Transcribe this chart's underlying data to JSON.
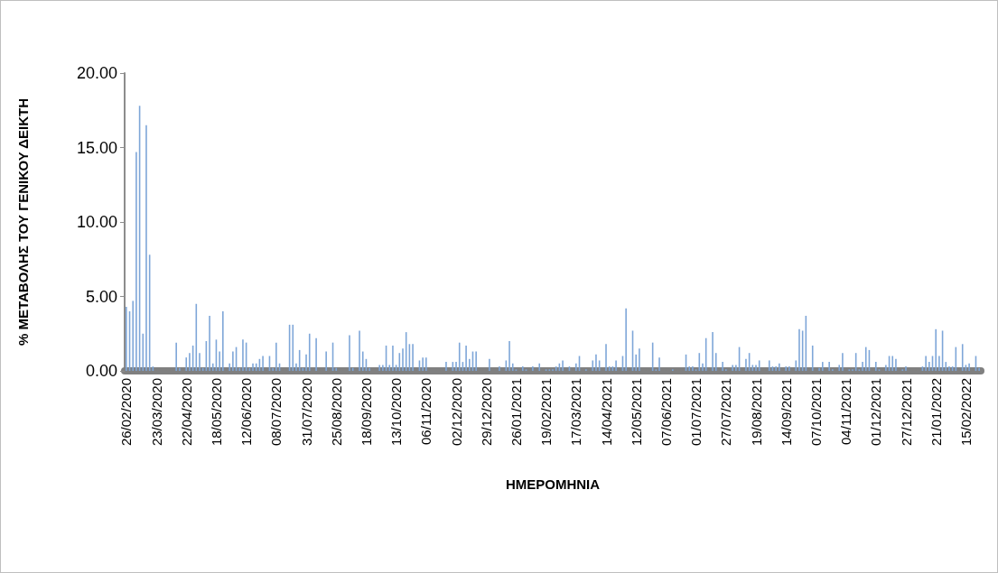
{
  "chart_data": {
    "type": "bar",
    "xlabel": "ΗΜΕΡΟΜΗΝΙΑ",
    "ylabel": "% ΜΕΤΑΒΟΛΗΣ ΤΟΥ ΓΕΝΙΚΟΥ ΔΕΙΚΤΗ",
    "color": "#7ea6d8",
    "grid": false,
    "ylim": [
      0,
      20
    ],
    "yticks": [
      {
        "value": 0,
        "label": "0.00"
      },
      {
        "value": 5,
        "label": "5.00"
      },
      {
        "value": 10,
        "label": "10.00"
      },
      {
        "value": 15,
        "label": "15.00"
      },
      {
        "value": 20,
        "label": "20.00"
      }
    ],
    "categories": [
      "26/02/2020",
      null,
      null,
      null,
      null,
      null,
      null,
      null,
      null,
      "23/03/2020",
      null,
      null,
      null,
      null,
      null,
      null,
      null,
      null,
      "22/04/2020",
      null,
      null,
      null,
      null,
      null,
      null,
      null,
      null,
      "18/05/2020",
      null,
      null,
      null,
      null,
      null,
      null,
      null,
      null,
      "12/06/2020",
      null,
      null,
      null,
      null,
      null,
      null,
      null,
      null,
      "08/07/2020",
      null,
      null,
      null,
      null,
      null,
      null,
      null,
      null,
      "31/07/2020",
      null,
      null,
      null,
      null,
      null,
      null,
      null,
      null,
      "25/08/2020",
      null,
      null,
      null,
      null,
      null,
      null,
      null,
      null,
      "18/09/2020",
      null,
      null,
      null,
      null,
      null,
      null,
      null,
      null,
      "13/10/2020",
      null,
      null,
      null,
      null,
      null,
      null,
      null,
      null,
      "06/11/2020",
      null,
      null,
      null,
      null,
      null,
      null,
      null,
      null,
      "02/12/2020",
      null,
      null,
      null,
      null,
      null,
      null,
      null,
      null,
      "29/12/2020",
      null,
      null,
      null,
      null,
      null,
      null,
      null,
      null,
      "26/01/2021",
      null,
      null,
      null,
      null,
      null,
      null,
      null,
      null,
      "19/02/2021",
      null,
      null,
      null,
      null,
      null,
      null,
      null,
      null,
      "17/03/2021",
      null,
      null,
      null,
      null,
      null,
      null,
      null,
      null,
      "14/04/2021",
      null,
      null,
      null,
      null,
      null,
      null,
      null,
      null,
      "12/05/2021",
      null,
      null,
      null,
      null,
      null,
      null,
      null,
      null,
      "07/06/2021",
      null,
      null,
      null,
      null,
      null,
      null,
      null,
      null,
      "01/07/2021",
      null,
      null,
      null,
      null,
      null,
      null,
      null,
      null,
      "27/07/2021",
      null,
      null,
      null,
      null,
      null,
      null,
      null,
      null,
      "19/08/2021",
      null,
      null,
      null,
      null,
      null,
      null,
      null,
      null,
      "14/09/2021",
      null,
      null,
      null,
      null,
      null,
      null,
      null,
      null,
      "07/10/2021",
      null,
      null,
      null,
      null,
      null,
      null,
      null,
      null,
      "04/11/2021",
      null,
      null,
      null,
      null,
      null,
      null,
      null,
      null,
      "01/12/2021",
      null,
      null,
      null,
      null,
      null,
      null,
      null,
      null,
      "27/12/2021",
      null,
      null,
      null,
      null,
      null,
      null,
      null,
      null,
      "21/01/2022",
      null,
      null,
      null,
      null,
      null,
      null,
      null,
      null,
      "15/02/2022",
      null,
      null,
      null,
      null
    ],
    "values": [
      4.3,
      4.0,
      4.7,
      14.7,
      17.8,
      2.5,
      16.5,
      7.8,
      0.3,
      0,
      0,
      0,
      0,
      0,
      0,
      1.9,
      0.2,
      0,
      0.9,
      1.2,
      1.7,
      4.5,
      1.2,
      0.2,
      2.0,
      3.7,
      0.5,
      2.1,
      1.3,
      4.0,
      0,
      0.5,
      1.3,
      1.6,
      0.2,
      2.1,
      1.9,
      0.2,
      0.5,
      0.5,
      0.8,
      1.0,
      0,
      1.0,
      0.2,
      1.9,
      0.5,
      0,
      0,
      3.1,
      3.1,
      0.5,
      1.4,
      0.2,
      1.1,
      2.5,
      0,
      2.2,
      0,
      0,
      1.3,
      0,
      1.9,
      0.2,
      0,
      0,
      0,
      2.4,
      0.2,
      0,
      2.7,
      1.3,
      0.8,
      0.2,
      0,
      0,
      0.4,
      0.4,
      1.7,
      0.4,
      1.7,
      0.4,
      1.2,
      1.5,
      2.6,
      1.8,
      1.8,
      0,
      0.7,
      0.9,
      0.9,
      0,
      0,
      0,
      0,
      0,
      0.6,
      0,
      0.6,
      0.6,
      1.9,
      0.6,
      1.7,
      0.8,
      1.3,
      1.3,
      0,
      0,
      0,
      0.8,
      0,
      0,
      0.3,
      0,
      0.7,
      2.0,
      0.5,
      0.1,
      0,
      0.3,
      0.1,
      0,
      0.3,
      0,
      0.5,
      0,
      0.1,
      0.1,
      0.1,
      0.3,
      0.5,
      0.7,
      0,
      0.3,
      0,
      0.5,
      1.0,
      0,
      0.1,
      0,
      0.7,
      1.1,
      0.7,
      0,
      1.8,
      0.3,
      0.3,
      0.7,
      0,
      1.0,
      4.2,
      0,
      2.7,
      1.1,
      1.5,
      0,
      0,
      0,
      1.9,
      0.1,
      0.9,
      0,
      0,
      0,
      0.1,
      0,
      0,
      0,
      1.1,
      0.3,
      0.3,
      0.1,
      1.2,
      0.5,
      2.2,
      0,
      2.6,
      1.2,
      0,
      0.6,
      0.1,
      0,
      0.4,
      0.4,
      1.6,
      0,
      0.8,
      1.2,
      0.4,
      0.4,
      0.7,
      0,
      0,
      0.7,
      0.3,
      0.3,
      0.5,
      0,
      0.3,
      0.3,
      0,
      0.7,
      2.8,
      2.7,
      3.7,
      0,
      1.7,
      0,
      0.2,
      0.6,
      0,
      0.6,
      0.1,
      0,
      0.4,
      1.2,
      0,
      0.1,
      0.1,
      1.2,
      0.1,
      0.6,
      1.6,
      1.4,
      0,
      0.6,
      0.1,
      0,
      0.4,
      1.0,
      1.0,
      0.8,
      0,
      0.1,
      0.3,
      0,
      0,
      0,
      0,
      0.3,
      1.0,
      0.6,
      1.0,
      2.8,
      1.0,
      2.7,
      0.6,
      0.3,
      0.3,
      1.6,
      0,
      1.8,
      0.4,
      0.5,
      0,
      1.0,
      0.2
    ]
  }
}
